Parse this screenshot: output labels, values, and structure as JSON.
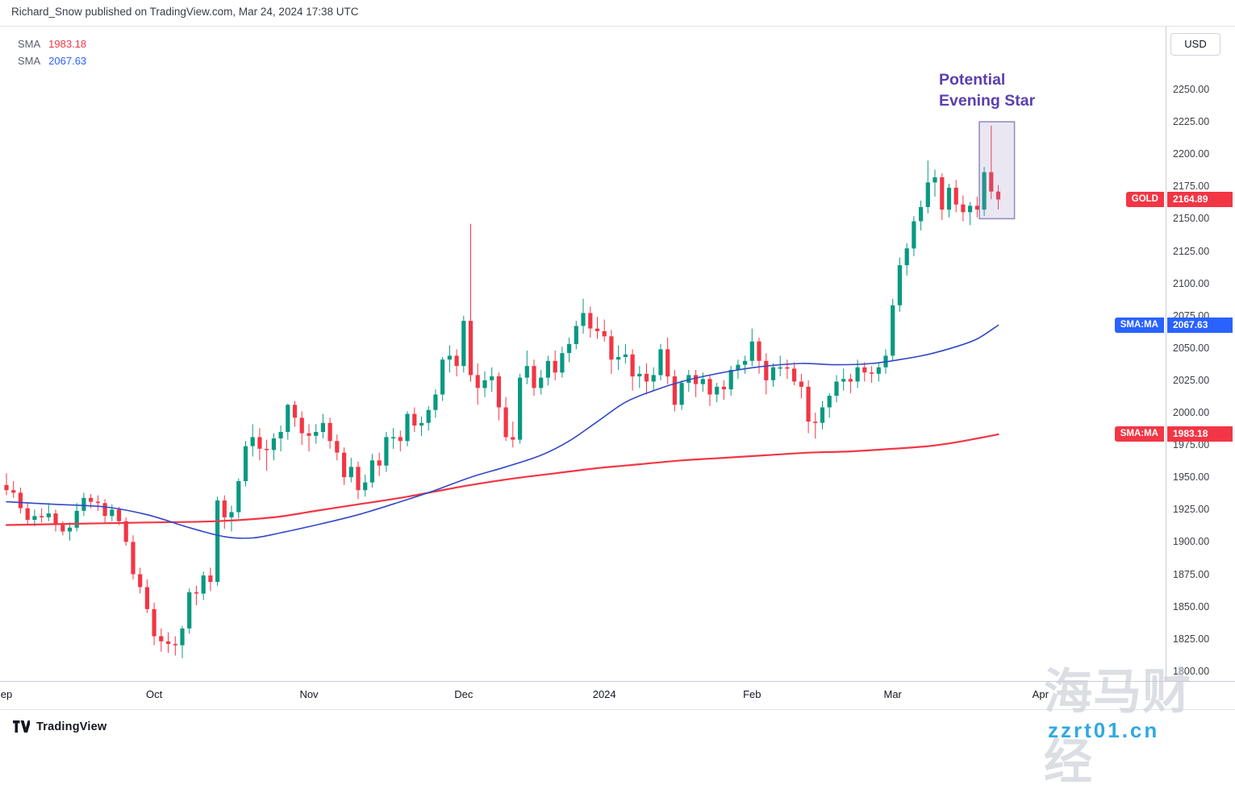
{
  "header": {
    "publish_line": "Richard_Snow published on TradingView.com, Mar 24, 2024 17:38 UTC"
  },
  "legend": {
    "items": [
      {
        "label": "SMA",
        "value": "1983.18",
        "color": "#f23645"
      },
      {
        "label": "SMA",
        "value": "2067.63",
        "color": "#2962ff"
      }
    ]
  },
  "annotation": {
    "line1": "Potential",
    "line2": "Evening Star"
  },
  "price_axis": {
    "currency_button": "USD",
    "ticks": [
      "2250.00",
      "2225.00",
      "2200.00",
      "2175.00",
      "2150.00",
      "2125.00",
      "2100.00",
      "2075.00",
      "2050.00",
      "2025.00",
      "2000.00",
      "1975.00",
      "1950.00",
      "1925.00",
      "1900.00",
      "1875.00",
      "1850.00",
      "1825.00",
      "1800.00"
    ]
  },
  "price_labels": [
    {
      "name": "GOLD",
      "value": "2164.89",
      "color": "#f23645"
    },
    {
      "name": "SMA:MA",
      "value": "2067.63",
      "color": "#2962ff"
    },
    {
      "name": "SMA:MA",
      "value": "1983.18",
      "color": "#f23645"
    }
  ],
  "time_axis": {
    "labels": [
      {
        "text": "ep",
        "idx": 0
      },
      {
        "text": "Oct",
        "idx": 21
      },
      {
        "text": "Nov",
        "idx": 43
      },
      {
        "text": "Dec",
        "idx": 65
      },
      {
        "text": "2024",
        "idx": 85
      },
      {
        "text": "Feb",
        "idx": 106
      },
      {
        "text": "Mar",
        "idx": 126
      },
      {
        "text": "Apr",
        "idx": 147
      }
    ]
  },
  "footer": {
    "brand": "TradingView"
  },
  "watermark": {
    "line1": "海马财经",
    "line2": "zzrt01.cn"
  },
  "colors": {
    "up": "#089981",
    "down": "#f23645",
    "sma_fast_line": "#3148c8",
    "sma_slow_line": "#f23645",
    "annotation": "#5b3fae",
    "box_fill": "rgba(148,134,196,0.20)",
    "box_stroke": "rgba(94,77,157,0.65)"
  },
  "chart_data": {
    "type": "candlestick",
    "symbol": "GOLD",
    "currency": "USD",
    "last_price": 2164.89,
    "x_range": {
      "start": "Sep 2023",
      "end": "Mar 22 2024"
    },
    "y_axis": {
      "min": 1800,
      "max": 2250,
      "tick_step": 25,
      "grid": false
    },
    "candles": [
      [
        1944,
        1953,
        1936,
        1940
      ],
      [
        1940,
        1947,
        1934,
        1938
      ],
      [
        1938,
        1942,
        1922,
        1926
      ],
      [
        1926,
        1930,
        1914,
        1917
      ],
      [
        1917,
        1925,
        1912,
        1920
      ],
      [
        1920,
        1926,
        1915,
        1919
      ],
      [
        1919,
        1930,
        1916,
        1922
      ],
      [
        1922,
        1925,
        1908,
        1913
      ],
      [
        1913,
        1916,
        1905,
        1908
      ],
      [
        1908,
        1915,
        1901,
        1911
      ],
      [
        1911,
        1930,
        1908,
        1924
      ],
      [
        1924,
        1938,
        1920,
        1934
      ],
      [
        1934,
        1937,
        1926,
        1931
      ],
      [
        1931,
        1936,
        1924,
        1930
      ],
      [
        1930,
        1933,
        1914,
        1920
      ],
      [
        1920,
        1929,
        1916,
        1925
      ],
      [
        1925,
        1927,
        1913,
        1916
      ],
      [
        1916,
        1919,
        1897,
        1900
      ],
      [
        1900,
        1905,
        1871,
        1875
      ],
      [
        1875,
        1880,
        1860,
        1865
      ],
      [
        1865,
        1871,
        1845,
        1848
      ],
      [
        1848,
        1853,
        1820,
        1827
      ],
      [
        1827,
        1833,
        1815,
        1823
      ],
      [
        1823,
        1830,
        1814,
        1821
      ],
      [
        1821,
        1827,
        1812,
        1820
      ],
      [
        1820,
        1835,
        1810,
        1833
      ],
      [
        1833,
        1864,
        1829,
        1861
      ],
      [
        1861,
        1866,
        1851,
        1860
      ],
      [
        1860,
        1877,
        1855,
        1874
      ],
      [
        1874,
        1880,
        1862,
        1869
      ],
      [
        1869,
        1935,
        1866,
        1932
      ],
      [
        1932,
        1936,
        1910,
        1919
      ],
      [
        1919,
        1928,
        1908,
        1923
      ],
      [
        1923,
        1949,
        1918,
        1947
      ],
      [
        1947,
        1978,
        1943,
        1974
      ],
      [
        1974,
        1991,
        1966,
        1981
      ],
      [
        1981,
        1988,
        1963,
        1972
      ],
      [
        1972,
        1979,
        1955,
        1971
      ],
      [
        1971,
        1984,
        1963,
        1980
      ],
      [
        1980,
        1990,
        1970,
        1985
      ],
      [
        1985,
        2007,
        1979,
        2006
      ],
      [
        2006,
        2009,
        1989,
        1996
      ],
      [
        1996,
        2001,
        1975,
        1984
      ],
      [
        1984,
        1991,
        1970,
        1982
      ],
      [
        1982,
        1991,
        1976,
        1985
      ],
      [
        1985,
        1999,
        1980,
        1992
      ],
      [
        1992,
        1996,
        1972,
        1978
      ],
      [
        1978,
        1983,
        1963,
        1969
      ],
      [
        1969,
        1973,
        1944,
        1950
      ],
      [
        1950,
        1965,
        1946,
        1958
      ],
      [
        1958,
        1962,
        1933,
        1940
      ],
      [
        1940,
        1952,
        1935,
        1946
      ],
      [
        1946,
        1968,
        1942,
        1963
      ],
      [
        1963,
        1969,
        1951,
        1959
      ],
      [
        1959,
        1985,
        1954,
        1981
      ],
      [
        1981,
        1988,
        1972,
        1981
      ],
      [
        1981,
        1986,
        1970,
        1978
      ],
      [
        1978,
        2001,
        1974,
        1999
      ],
      [
        1999,
        2004,
        1985,
        1990
      ],
      [
        1990,
        1997,
        1982,
        1992
      ],
      [
        1992,
        2005,
        1986,
        2002
      ],
      [
        2002,
        2018,
        1996,
        2014
      ],
      [
        2014,
        2043,
        2009,
        2041
      ],
      [
        2041,
        2052,
        2031,
        2044
      ],
      [
        2044,
        2049,
        2028,
        2036
      ],
      [
        2036,
        2075,
        2031,
        2071
      ],
      [
        2071,
        2146,
        2024,
        2029
      ],
      [
        2029,
        2038,
        2006,
        2019
      ],
      [
        2019,
        2032,
        2012,
        2025
      ],
      [
        2025,
        2035,
        2016,
        2028
      ],
      [
        2028,
        2031,
        1994,
        2004
      ],
      [
        2004,
        2012,
        1978,
        1981
      ],
      [
        1981,
        1993,
        1973,
        1979
      ],
      [
        1979,
        2030,
        1976,
        2027
      ],
      [
        2027,
        2048,
        2022,
        2036
      ],
      [
        2036,
        2041,
        2013,
        2019
      ],
      [
        2019,
        2033,
        2014,
        2027
      ],
      [
        2027,
        2044,
        2021,
        2040
      ],
      [
        2040,
        2048,
        2025,
        2031
      ],
      [
        2031,
        2051,
        2027,
        2046
      ],
      [
        2046,
        2058,
        2039,
        2053
      ],
      [
        2053,
        2071,
        2049,
        2067
      ],
      [
        2067,
        2088,
        2061,
        2077
      ],
      [
        2077,
        2082,
        2058,
        2065
      ],
      [
        2065,
        2074,
        2057,
        2063
      ],
      [
        2063,
        2072,
        2055,
        2059
      ],
      [
        2059,
        2064,
        2030,
        2041
      ],
      [
        2041,
        2052,
        2033,
        2043
      ],
      [
        2043,
        2053,
        2038,
        2045
      ],
      [
        2045,
        2049,
        2017,
        2028
      ],
      [
        2028,
        2036,
        2019,
        2030
      ],
      [
        2030,
        2038,
        2014,
        2024
      ],
      [
        2024,
        2035,
        2017,
        2029
      ],
      [
        2029,
        2053,
        2025,
        2049
      ],
      [
        2049,
        2058,
        2022,
        2028
      ],
      [
        2028,
        2033,
        2001,
        2006
      ],
      [
        2006,
        2025,
        2002,
        2023
      ],
      [
        2023,
        2033,
        2016,
        2029
      ],
      [
        2029,
        2033,
        2012,
        2022
      ],
      [
        2022,
        2031,
        2016,
        2026
      ],
      [
        2026,
        2029,
        2005,
        2014
      ],
      [
        2014,
        2023,
        2008,
        2020
      ],
      [
        2020,
        2025,
        2010,
        2018
      ],
      [
        2018,
        2036,
        2013,
        2033
      ],
      [
        2033,
        2041,
        2026,
        2037
      ],
      [
        2037,
        2044,
        2030,
        2040
      ],
      [
        2040,
        2065,
        2036,
        2055
      ],
      [
        2055,
        2058,
        2030,
        2040
      ],
      [
        2040,
        2046,
        2014,
        2025
      ],
      [
        2025,
        2038,
        2020,
        2035
      ],
      [
        2035,
        2044,
        2028,
        2035
      ],
      [
        2035,
        2041,
        2026,
        2034
      ],
      [
        2034,
        2039,
        2021,
        2024
      ],
      [
        2024,
        2030,
        2011,
        2020
      ],
      [
        2020,
        2025,
        1984,
        1993
      ],
      [
        1993,
        2000,
        1980,
        1992
      ],
      [
        1992,
        2009,
        1987,
        2004
      ],
      [
        2004,
        2015,
        1996,
        2013
      ],
      [
        2013,
        2029,
        2008,
        2024
      ],
      [
        2024,
        2034,
        2017,
        2026
      ],
      [
        2026,
        2030,
        2015,
        2024
      ],
      [
        2024,
        2041,
        2019,
        2035
      ],
      [
        2035,
        2039,
        2024,
        2031
      ],
      [
        2031,
        2036,
        2023,
        2030
      ],
      [
        2030,
        2038,
        2024,
        2035
      ],
      [
        2035,
        2049,
        2030,
        2044
      ],
      [
        2044,
        2088,
        2040,
        2083
      ],
      [
        2083,
        2120,
        2078,
        2114
      ],
      [
        2114,
        2131,
        2106,
        2127
      ],
      [
        2127,
        2152,
        2121,
        2148
      ],
      [
        2148,
        2164,
        2141,
        2159
      ],
      [
        2159,
        2195,
        2154,
        2178
      ],
      [
        2178,
        2188,
        2167,
        2182
      ],
      [
        2182,
        2185,
        2149,
        2157
      ],
      [
        2157,
        2177,
        2151,
        2174
      ],
      [
        2174,
        2180,
        2155,
        2161
      ],
      [
        2161,
        2168,
        2148,
        2155
      ],
      [
        2155,
        2163,
        2145,
        2160
      ],
      [
        2160,
        2167,
        2151,
        2157
      ],
      [
        2157,
        2190,
        2152,
        2186
      ],
      [
        2186,
        2222,
        2165,
        2171
      ],
      [
        2171,
        2176,
        2157,
        2164.89
      ]
    ],
    "overlays": [
      {
        "name": "SMA:MA",
        "value": 1983.18,
        "color": "#f23645",
        "width": 2.2,
        "points": [
          [
            0,
            1913
          ],
          [
            10,
            1914
          ],
          [
            20,
            1915
          ],
          [
            30,
            1916
          ],
          [
            38,
            1919
          ],
          [
            44,
            1924
          ],
          [
            50,
            1929
          ],
          [
            56,
            1934
          ],
          [
            61,
            1939
          ],
          [
            66,
            1944
          ],
          [
            72,
            1949
          ],
          [
            78,
            1953
          ],
          [
            84,
            1957
          ],
          [
            90,
            1960
          ],
          [
            96,
            1963
          ],
          [
            102,
            1965
          ],
          [
            108,
            1967
          ],
          [
            114,
            1969
          ],
          [
            120,
            1970
          ],
          [
            126,
            1972
          ],
          [
            131,
            1974
          ],
          [
            135,
            1977
          ],
          [
            138,
            1980
          ],
          [
            141,
            1983.18
          ]
        ]
      },
      {
        "name": "SMA:MA",
        "value": 2067.63,
        "color": "#3148c8",
        "width": 1.6,
        "points": [
          [
            0,
            1931
          ],
          [
            7,
            1929
          ],
          [
            14,
            1927
          ],
          [
            20,
            1921
          ],
          [
            26,
            1911
          ],
          [
            31,
            1904
          ],
          [
            35,
            1903
          ],
          [
            39,
            1907
          ],
          [
            44,
            1913
          ],
          [
            50,
            1921
          ],
          [
            56,
            1931
          ],
          [
            61,
            1940
          ],
          [
            66,
            1950
          ],
          [
            71,
            1958
          ],
          [
            76,
            1967
          ],
          [
            80,
            1978
          ],
          [
            84,
            1993
          ],
          [
            88,
            2008
          ],
          [
            92,
            2017
          ],
          [
            96,
            2024
          ],
          [
            100,
            2029
          ],
          [
            104,
            2033
          ],
          [
            108,
            2036
          ],
          [
            113,
            2038
          ],
          [
            118,
            2037
          ],
          [
            123,
            2038
          ],
          [
            127,
            2041
          ],
          [
            131,
            2045
          ],
          [
            135,
            2051
          ],
          [
            138,
            2057
          ],
          [
            141,
            2067.63
          ]
        ]
      }
    ],
    "highlight_box": {
      "label": "Potential Evening Star",
      "idx_start": 138.3,
      "idx_end": 143.3,
      "price_top": 2225,
      "price_bottom": 2150
    }
  }
}
